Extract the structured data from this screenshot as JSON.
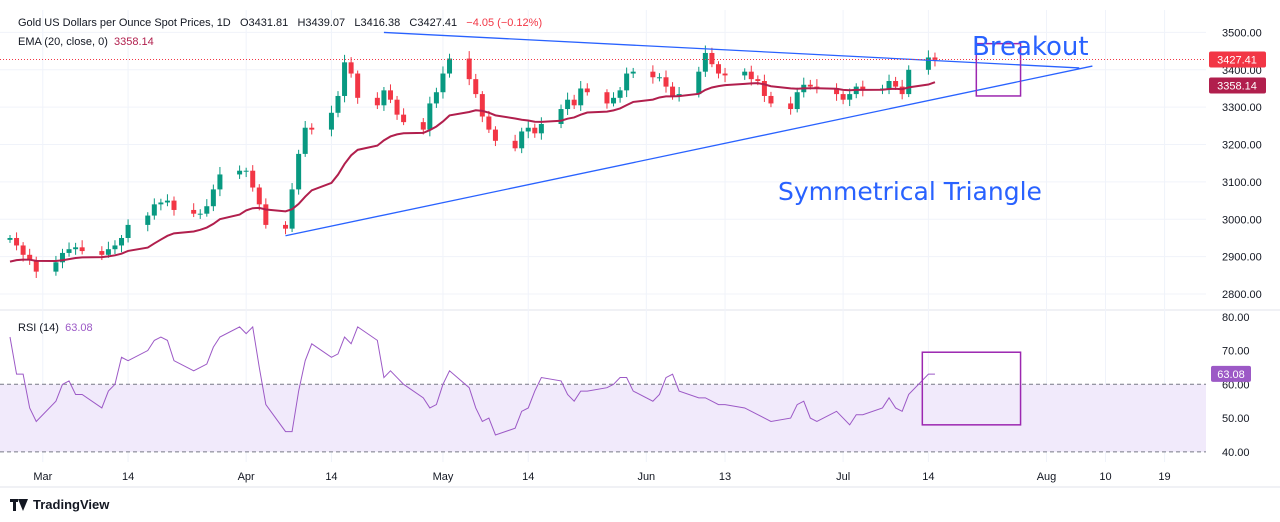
{
  "header": {
    "title": "Gold US Dollars per Ounce Spot Prices, 1D",
    "o_label": "O",
    "o": "3431.81",
    "h_label": "H",
    "h": "3439.07",
    "l_label": "L",
    "l": "3416.38",
    "c_label": "C",
    "c": "3427.41",
    "change": "−4.05 (−0.12%)",
    "ema_label": "EMA (20, close, 0)",
    "ema_value": "3358.14",
    "rsi_label": "RSI (14)",
    "rsi_value": "63.08"
  },
  "annotations": {
    "breakout": "Breakout",
    "triangle": "Symmetrical Triangle"
  },
  "footer": {
    "brand": "TradingView"
  },
  "colors": {
    "up": "#089981",
    "down": "#f23645",
    "ema": "#b11f4d",
    "rsi": "#9c59c6",
    "trend": "#2962ff",
    "box": "#9c27b0",
    "rsi_band": "#f1eafb"
  },
  "chart_data": [
    {
      "type": "candlestick",
      "title": "Gold US Dollars per Ounce Spot Prices, 1D",
      "x_start": "2025-02-24",
      "x_ticks": [
        "Mar",
        "14",
        "Apr",
        "14",
        "May",
        "14",
        "Jun",
        "13",
        "Jul",
        "14",
        "Aug",
        "10",
        "19"
      ],
      "ylim": [
        2760,
        3560
      ],
      "y_ticks": [
        2800,
        2900,
        3000,
        3100,
        3200,
        3300,
        3400,
        3500
      ],
      "y_tick_labels": [
        "2800.00",
        "2900.00",
        "3000.00",
        "3100.00",
        "3200.00",
        "3300.00",
        "3400.00",
        "3500.00"
      ],
      "price_labels": [
        {
          "value": 3427.41,
          "text": "3427.41"
        },
        {
          "value": 3358.14,
          "text": "3358.14"
        }
      ],
      "closes": [
        2950,
        2930,
        2905,
        2890,
        2860,
        2885,
        2910,
        2920,
        2925,
        2915,
        2905,
        2920,
        2930,
        2950,
        2985,
        3010,
        3040,
        3045,
        3050,
        3025,
        3015,
        3015,
        3035,
        3080,
        3120,
        3130,
        3130,
        3085,
        3040,
        2985,
        2975,
        3080,
        3175,
        3245,
        3240,
        3285,
        3330,
        3420,
        3390,
        3325,
        3305,
        3345,
        3320,
        3280,
        3260,
        3240,
        3310,
        3340,
        3390,
        3430,
        3375,
        3335,
        3275,
        3240,
        3210,
        3190,
        3235,
        3245,
        3230,
        3255,
        3295,
        3320,
        3305,
        3350,
        3340,
        3310,
        3325,
        3345,
        3390,
        3395,
        3380,
        3380,
        3355,
        3330,
        3335,
        3395,
        3445,
        3415,
        3390,
        3385,
        3395,
        3375,
        3370,
        3330,
        3310,
        3295,
        3340,
        3360,
        3355,
        3350,
        3335,
        3320,
        3335,
        3355,
        3345,
        3350,
        3370,
        3355,
        3335,
        3400,
        3433,
        3427
      ],
      "candles_note": "",
      "ema": {
        "name": "EMA (20, close, 0)",
        "last": 3358.14
      },
      "trendlines": [
        {
          "from": [
            "2025-04-22",
            3500
          ],
          "to": [
            "2025-08-06",
            3405
          ]
        },
        {
          "from": [
            "2025-04-07",
            2956
          ],
          "to": [
            "2025-08-08",
            3410
          ]
        }
      ],
      "annotation_boxes": [
        {
          "x": [
            "2025-07-21",
            "2025-07-25"
          ],
          "y": [
            3330,
            3470
          ]
        }
      ]
    },
    {
      "type": "line",
      "title": "RSI (14)",
      "ylim": [
        37,
        82
      ],
      "y_ticks": [
        40,
        50,
        60,
        70,
        80
      ],
      "y_tick_labels": [
        "40.00",
        "50.00",
        "60.00",
        "70.00",
        "80.00"
      ],
      "band": [
        40,
        60
      ],
      "dashed_level": 60,
      "values": [
        74,
        63,
        63,
        53,
        49,
        55,
        60,
        61,
        57,
        57,
        53,
        58,
        60,
        68,
        67,
        70,
        73,
        74,
        73,
        67,
        64,
        65,
        66,
        71,
        74,
        77,
        75,
        77,
        65,
        54,
        46,
        46,
        58,
        67,
        72,
        68,
        69,
        74,
        72,
        77,
        73,
        62,
        64,
        62,
        60,
        56,
        53,
        54,
        60,
        64,
        59,
        53,
        49,
        50,
        45,
        47,
        52,
        53,
        58,
        62,
        61,
        57,
        55,
        58,
        58,
        59,
        60,
        62,
        62,
        58,
        55,
        57,
        62,
        63,
        58,
        56,
        56,
        55,
        54,
        54,
        53,
        52,
        51,
        50,
        49,
        50,
        54,
        55,
        50,
        49,
        52,
        50,
        48,
        51,
        51,
        53,
        56,
        53,
        52,
        57,
        63,
        63
      ],
      "last": 63.08,
      "annotation_boxes": [
        {
          "x": [
            "2025-07-21",
            "2025-07-25"
          ],
          "y": [
            48,
            69.5
          ]
        }
      ]
    }
  ]
}
